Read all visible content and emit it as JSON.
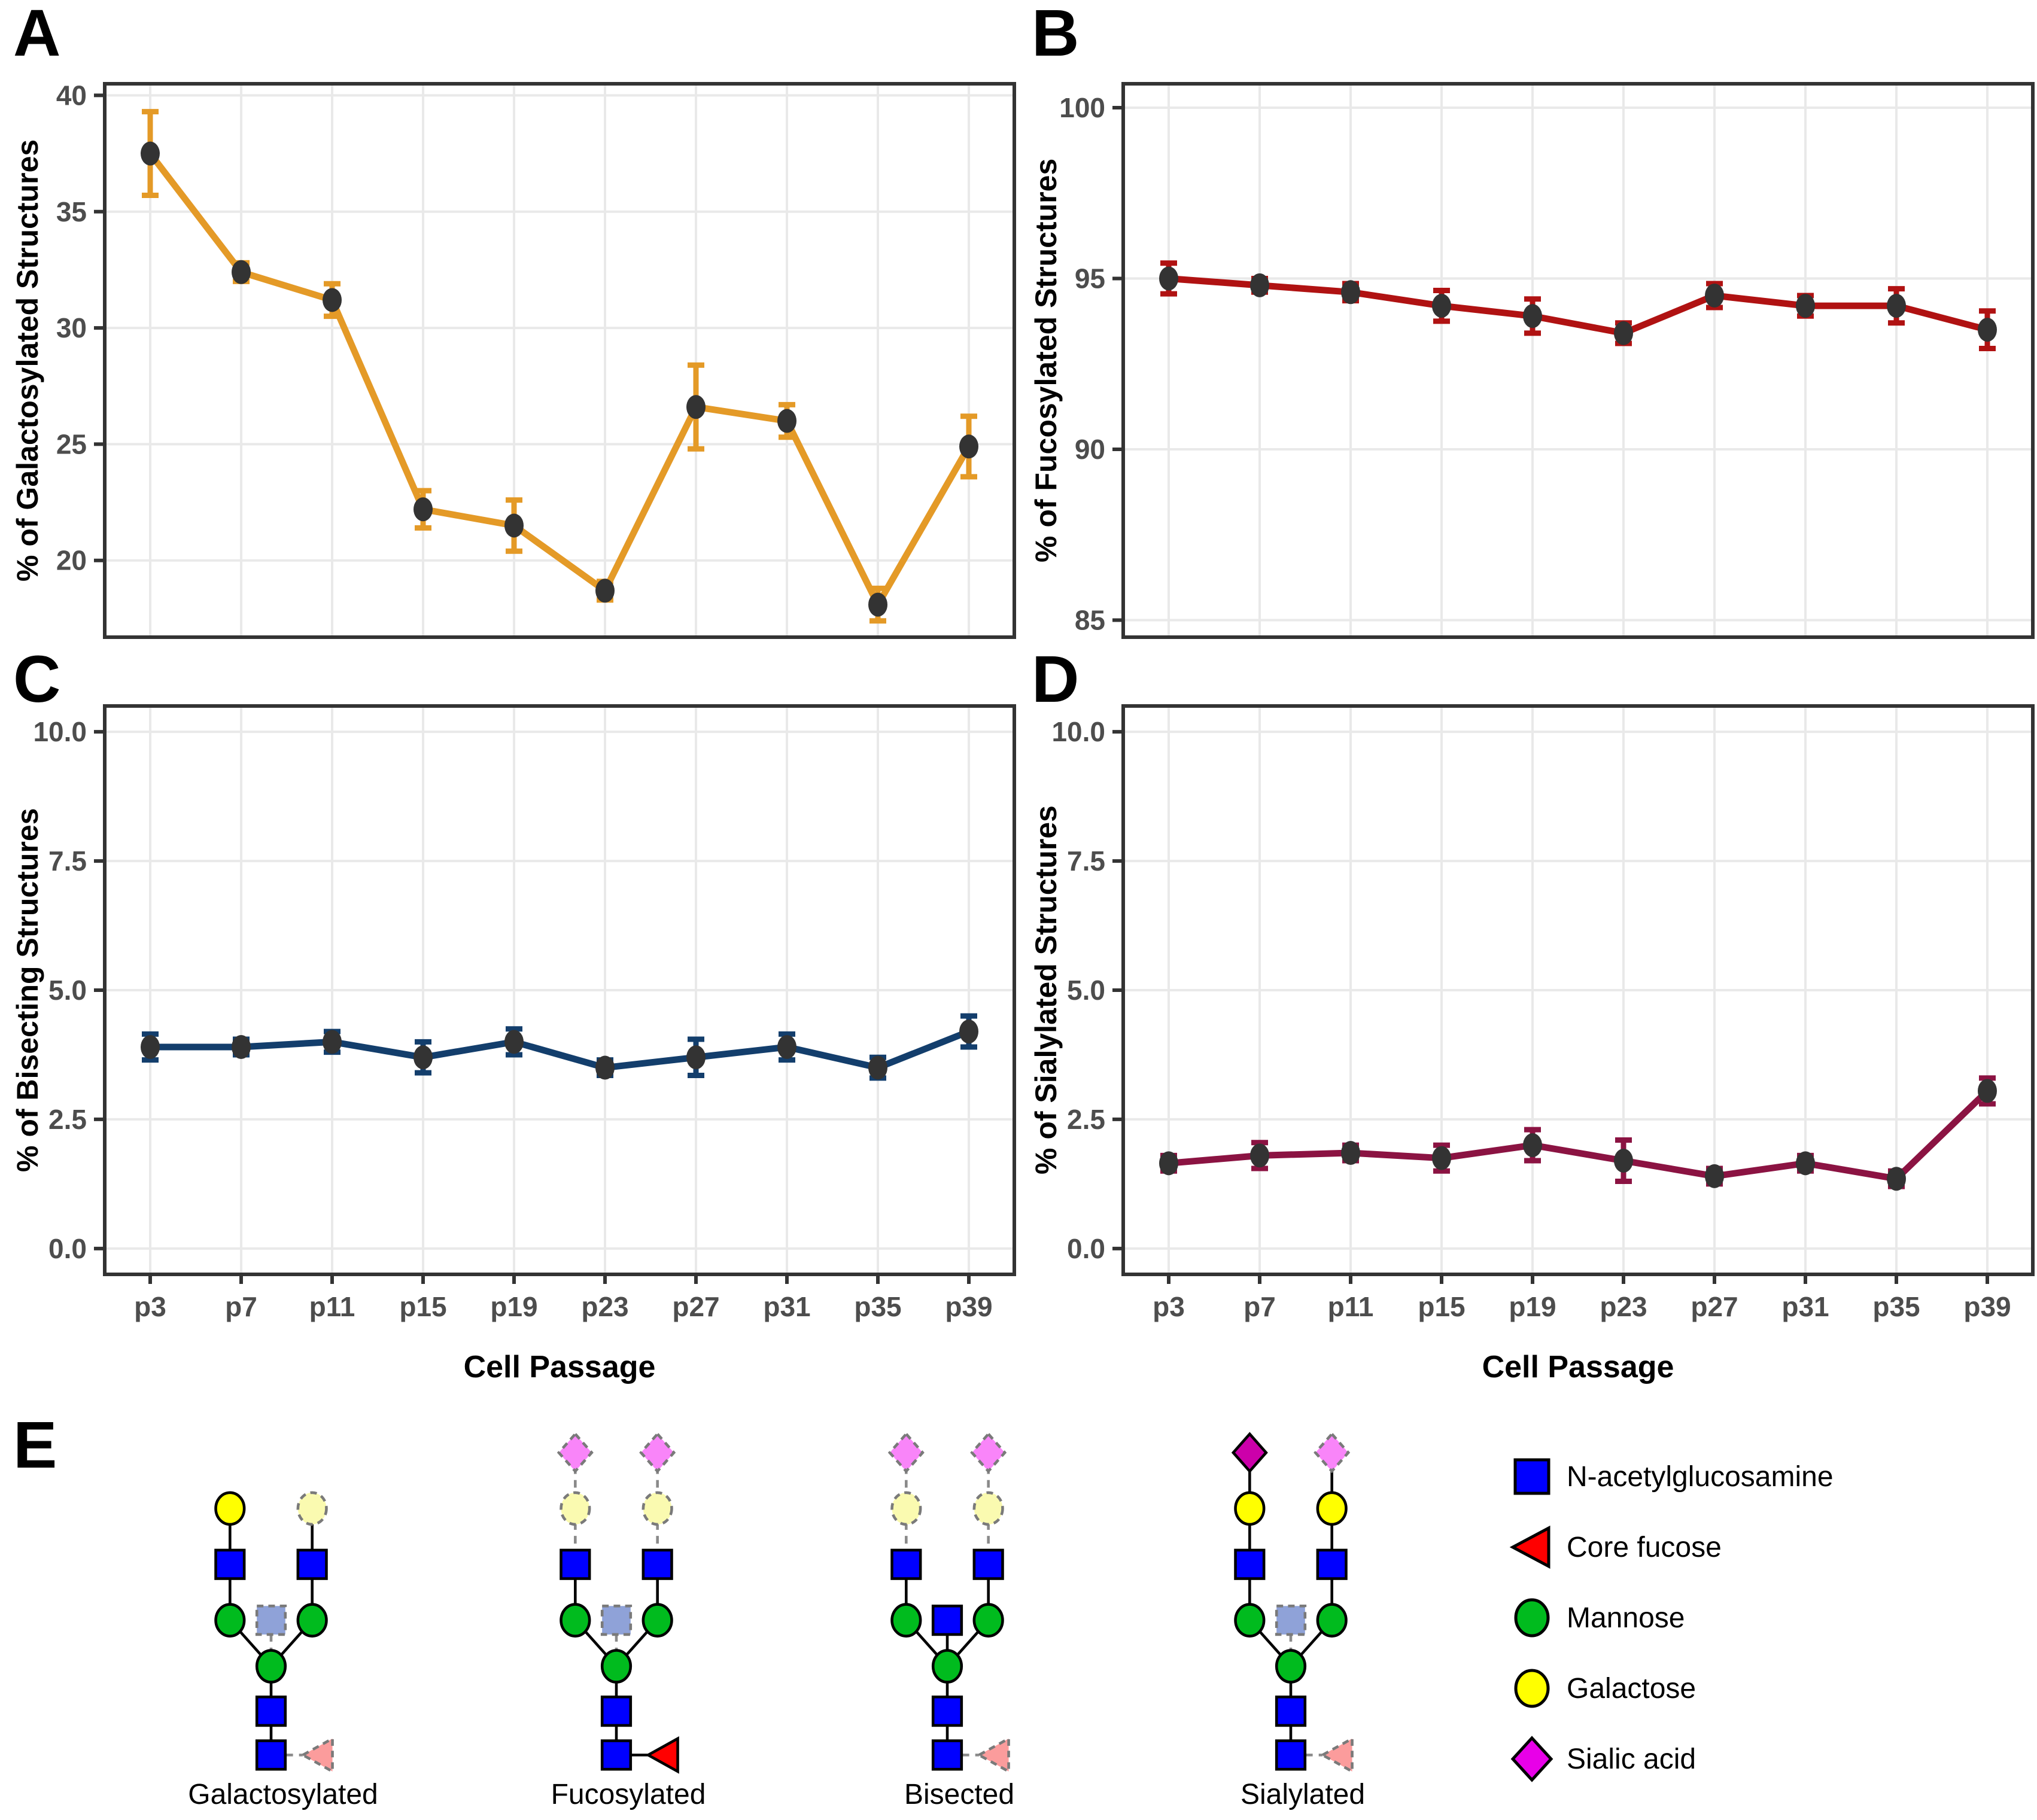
{
  "figure": {
    "panel_letters": [
      "A",
      "B",
      "C",
      "D",
      "E"
    ],
    "x_axis_title": "Cell Passage"
  },
  "chart_data": [
    {
      "panel": "A",
      "type": "line",
      "title": "",
      "ylabel": "% of Galactosylated Structures",
      "xlabel": "Cell Passage",
      "categories": [
        "p3",
        "p7",
        "p11",
        "p15",
        "p19",
        "p23",
        "p27",
        "p31",
        "p35",
        "p39"
      ],
      "series": [
        {
          "name": "Galactosylated",
          "values": [
            37.5,
            32.4,
            31.2,
            22.2,
            21.5,
            18.7,
            26.6,
            26.0,
            18.1,
            24.9
          ],
          "errors": [
            1.8,
            0.4,
            0.7,
            0.8,
            1.1,
            0.4,
            1.8,
            0.7,
            0.7,
            1.3
          ]
        }
      ],
      "ylim": [
        16.7,
        40.5
      ],
      "yticks": [
        20,
        25,
        30,
        35,
        40
      ],
      "ytick_labels": [
        "20",
        "25",
        "30",
        "35",
        "40"
      ],
      "line_color": "#E49A27",
      "point_color": "#333333",
      "grid": true,
      "legend_position": "none"
    },
    {
      "panel": "B",
      "type": "line",
      "title": "",
      "ylabel": "% of Fucosylated Structures",
      "xlabel": "Cell Passage",
      "categories": [
        "p3",
        "p7",
        "p11",
        "p15",
        "p19",
        "p23",
        "p27",
        "p31",
        "p35",
        "p39"
      ],
      "series": [
        {
          "name": "Fucosylated",
          "values": [
            95.0,
            94.8,
            94.6,
            94.2,
            93.9,
            93.4,
            94.5,
            94.2,
            94.2,
            93.5
          ],
          "errors": [
            0.45,
            0.2,
            0.25,
            0.45,
            0.5,
            0.3,
            0.35,
            0.3,
            0.5,
            0.55
          ]
        }
      ],
      "ylim": [
        84.5,
        100.7
      ],
      "yticks": [
        85,
        90,
        95,
        100
      ],
      "ytick_labels": [
        "85",
        "90",
        "95",
        "100"
      ],
      "line_color": "#B01212",
      "point_color": "#333333",
      "grid": true,
      "legend_position": "none"
    },
    {
      "panel": "C",
      "type": "line",
      "title": "",
      "ylabel": "% of Bisecting Structures",
      "xlabel": "Cell Passage",
      "categories": [
        "p3",
        "p7",
        "p11",
        "p15",
        "p19",
        "p23",
        "p27",
        "p31",
        "p35",
        "p39"
      ],
      "series": [
        {
          "name": "Bisecting",
          "values": [
            3.9,
            3.9,
            4.0,
            3.7,
            4.0,
            3.5,
            3.7,
            3.9,
            3.5,
            4.2
          ],
          "errors": [
            0.25,
            0.15,
            0.2,
            0.3,
            0.25,
            0.15,
            0.35,
            0.25,
            0.2,
            0.3
          ]
        }
      ],
      "ylim": [
        -0.5,
        10.5
      ],
      "yticks": [
        0,
        2.5,
        5,
        7.5,
        10
      ],
      "ytick_labels": [
        "0.0",
        "2.5",
        "5.0",
        "7.5",
        "10.0"
      ],
      "line_color": "#133E6C",
      "point_color": "#333333",
      "grid": true,
      "legend_position": "none"
    },
    {
      "panel": "D",
      "type": "line",
      "title": "",
      "ylabel": "% of Sialylated Structures",
      "xlabel": "Cell Passage",
      "categories": [
        "p3",
        "p7",
        "p11",
        "p15",
        "p19",
        "p23",
        "p27",
        "p31",
        "p35",
        "p39"
      ],
      "series": [
        {
          "name": "Sialylated",
          "values": [
            1.65,
            1.8,
            1.85,
            1.75,
            2.0,
            1.7,
            1.4,
            1.65,
            1.35,
            3.05
          ],
          "errors": [
            0.15,
            0.25,
            0.15,
            0.25,
            0.3,
            0.4,
            0.15,
            0.15,
            0.15,
            0.25
          ]
        }
      ],
      "ylim": [
        -0.5,
        10.5
      ],
      "yticks": [
        0,
        2.5,
        5,
        7.5,
        10
      ],
      "ytick_labels": [
        "0.0",
        "2.5",
        "5.0",
        "7.5",
        "10.0"
      ],
      "line_color": "#8B1342",
      "point_color": "#333333",
      "grid": true,
      "legend_position": "none"
    }
  ],
  "glycan_panel": {
    "structures": [
      {
        "name": "Galactosylated",
        "nodes": [
          {
            "id": "gL",
            "shape": "circle",
            "fill": "#FFFF00",
            "dashed": false
          },
          {
            "id": "gR",
            "shape": "circle",
            "fill": "#FAFAB0",
            "dashed": true
          },
          {
            "id": "sL",
            "shape": "square",
            "fill": "#0000FF",
            "dashed": false
          },
          {
            "id": "sR",
            "shape": "square",
            "fill": "#0000FF",
            "dashed": false
          },
          {
            "id": "mL",
            "shape": "circle",
            "fill": "#00BB1E",
            "dashed": false
          },
          {
            "id": "mR",
            "shape": "circle",
            "fill": "#00BB1E",
            "dashed": false
          },
          {
            "id": "bis",
            "shape": "square",
            "fill": "#8FA2D8",
            "dashed": true
          },
          {
            "id": "mC",
            "shape": "circle",
            "fill": "#00BB1E",
            "dashed": false
          },
          {
            "id": "s5",
            "shape": "square",
            "fill": "#0000FF",
            "dashed": false
          },
          {
            "id": "s6",
            "shape": "square",
            "fill": "#0000FF",
            "dashed": false
          },
          {
            "id": "fuc",
            "shape": "triangle",
            "fill": "#FB9C9C",
            "dashed": true
          }
        ],
        "edges": [
          [
            "gL",
            "sL",
            "solid"
          ],
          [
            "gR",
            "sR",
            "solid"
          ],
          [
            "sL",
            "mL",
            "solid"
          ],
          [
            "sR",
            "mR",
            "solid"
          ],
          [
            "mL",
            "mC",
            "solid"
          ],
          [
            "mR",
            "mC",
            "solid"
          ],
          [
            "bis",
            "mC",
            "dashed"
          ],
          [
            "mC",
            "s5",
            "solid"
          ],
          [
            "s5",
            "s6",
            "solid"
          ],
          [
            "s6",
            "fuc",
            "dashed"
          ]
        ]
      },
      {
        "name": "Fucosylated",
        "nodes": [
          {
            "id": "dL",
            "shape": "diamond",
            "fill": "#F985F9",
            "dashed": true
          },
          {
            "id": "dR",
            "shape": "diamond",
            "fill": "#F985F9",
            "dashed": true
          },
          {
            "id": "gL",
            "shape": "circle",
            "fill": "#FAFAB0",
            "dashed": true
          },
          {
            "id": "gR",
            "shape": "circle",
            "fill": "#FAFAB0",
            "dashed": true
          },
          {
            "id": "sL",
            "shape": "square",
            "fill": "#0000FF",
            "dashed": false
          },
          {
            "id": "sR",
            "shape": "square",
            "fill": "#0000FF",
            "dashed": false
          },
          {
            "id": "mL",
            "shape": "circle",
            "fill": "#00BB1E",
            "dashed": false
          },
          {
            "id": "mR",
            "shape": "circle",
            "fill": "#00BB1E",
            "dashed": false
          },
          {
            "id": "bis",
            "shape": "square",
            "fill": "#8FA2D8",
            "dashed": true
          },
          {
            "id": "mC",
            "shape": "circle",
            "fill": "#00BB1E",
            "dashed": false
          },
          {
            "id": "s5",
            "shape": "square",
            "fill": "#0000FF",
            "dashed": false
          },
          {
            "id": "s6",
            "shape": "square",
            "fill": "#0000FF",
            "dashed": false
          },
          {
            "id": "fuc",
            "shape": "triangle",
            "fill": "#FF0000",
            "dashed": false
          }
        ],
        "edges": [
          [
            "dL",
            "gL",
            "dashed"
          ],
          [
            "dR",
            "gR",
            "dashed"
          ],
          [
            "gL",
            "sL",
            "dashed"
          ],
          [
            "gR",
            "sR",
            "dashed"
          ],
          [
            "sL",
            "mL",
            "solid"
          ],
          [
            "sR",
            "mR",
            "solid"
          ],
          [
            "mL",
            "mC",
            "solid"
          ],
          [
            "mR",
            "mC",
            "solid"
          ],
          [
            "bis",
            "mC",
            "dashed"
          ],
          [
            "mC",
            "s5",
            "solid"
          ],
          [
            "s5",
            "s6",
            "solid"
          ],
          [
            "s6",
            "fuc",
            "solid"
          ]
        ]
      },
      {
        "name": "Bisected",
        "nodes": [
          {
            "id": "dL",
            "shape": "diamond",
            "fill": "#F985F9",
            "dashed": true
          },
          {
            "id": "dR",
            "shape": "diamond",
            "fill": "#F985F9",
            "dashed": true
          },
          {
            "id": "gL",
            "shape": "circle",
            "fill": "#FAFAB0",
            "dashed": true
          },
          {
            "id": "gR",
            "shape": "circle",
            "fill": "#FAFAB0",
            "dashed": true
          },
          {
            "id": "sL",
            "shape": "square",
            "fill": "#0000FF",
            "dashed": false
          },
          {
            "id": "sR",
            "shape": "square",
            "fill": "#0000FF",
            "dashed": false
          },
          {
            "id": "mL",
            "shape": "circle",
            "fill": "#00BB1E",
            "dashed": false
          },
          {
            "id": "mR",
            "shape": "circle",
            "fill": "#00BB1E",
            "dashed": false
          },
          {
            "id": "bis",
            "shape": "square",
            "fill": "#0000FF",
            "dashed": false
          },
          {
            "id": "mC",
            "shape": "circle",
            "fill": "#00BB1E",
            "dashed": false
          },
          {
            "id": "s5",
            "shape": "square",
            "fill": "#0000FF",
            "dashed": false
          },
          {
            "id": "s6",
            "shape": "square",
            "fill": "#0000FF",
            "dashed": false
          },
          {
            "id": "fuc",
            "shape": "triangle",
            "fill": "#FB9C9C",
            "dashed": true
          }
        ],
        "edges": [
          [
            "dL",
            "gL",
            "dashed"
          ],
          [
            "dR",
            "gR",
            "dashed"
          ],
          [
            "gL",
            "sL",
            "dashed"
          ],
          [
            "gR",
            "sR",
            "dashed"
          ],
          [
            "sL",
            "mL",
            "solid"
          ],
          [
            "sR",
            "mR",
            "solid"
          ],
          [
            "mL",
            "mC",
            "solid"
          ],
          [
            "mR",
            "mC",
            "solid"
          ],
          [
            "bis",
            "mC",
            "solid"
          ],
          [
            "mC",
            "s5",
            "solid"
          ],
          [
            "s5",
            "s6",
            "solid"
          ],
          [
            "s6",
            "fuc",
            "dashed"
          ]
        ]
      },
      {
        "name": "Sialylated",
        "nodes": [
          {
            "id": "dL",
            "shape": "diamond",
            "fill": "#CC00AA",
            "dashed": false
          },
          {
            "id": "dR",
            "shape": "diamond",
            "fill": "#F985F9",
            "dashed": true
          },
          {
            "id": "gL",
            "shape": "circle",
            "fill": "#FFFF00",
            "dashed": false
          },
          {
            "id": "gR",
            "shape": "circle",
            "fill": "#FFFF00",
            "dashed": false
          },
          {
            "id": "sL",
            "shape": "square",
            "fill": "#0000FF",
            "dashed": false
          },
          {
            "id": "sR",
            "shape": "square",
            "fill": "#0000FF",
            "dashed": false
          },
          {
            "id": "mL",
            "shape": "circle",
            "fill": "#00BB1E",
            "dashed": false
          },
          {
            "id": "mR",
            "shape": "circle",
            "fill": "#00BB1E",
            "dashed": false
          },
          {
            "id": "bis",
            "shape": "square",
            "fill": "#8FA2D8",
            "dashed": true
          },
          {
            "id": "mC",
            "shape": "circle",
            "fill": "#00BB1E",
            "dashed": false
          },
          {
            "id": "s5",
            "shape": "square",
            "fill": "#0000FF",
            "dashed": false
          },
          {
            "id": "s6",
            "shape": "square",
            "fill": "#0000FF",
            "dashed": false
          },
          {
            "id": "fuc",
            "shape": "triangle",
            "fill": "#FB9C9C",
            "dashed": true
          }
        ],
        "edges": [
          [
            "dL",
            "gL",
            "solid"
          ],
          [
            "dR",
            "gR",
            "solid"
          ],
          [
            "gL",
            "sL",
            "solid"
          ],
          [
            "gR",
            "sR",
            "solid"
          ],
          [
            "sL",
            "mL",
            "solid"
          ],
          [
            "sR",
            "mR",
            "solid"
          ],
          [
            "mL",
            "mC",
            "solid"
          ],
          [
            "mR",
            "mC",
            "solid"
          ],
          [
            "bis",
            "mC",
            "dashed"
          ],
          [
            "mC",
            "s5",
            "solid"
          ],
          [
            "s5",
            "s6",
            "solid"
          ],
          [
            "s6",
            "fuc",
            "dashed"
          ]
        ]
      }
    ],
    "legend": [
      {
        "shape": "square",
        "color": "#0000FF",
        "label": "N-acetylglucosamine"
      },
      {
        "shape": "triangle-left",
        "color": "#FF0000",
        "label": "Core fucose"
      },
      {
        "shape": "circle",
        "color": "#00BB1E",
        "label": "Mannose"
      },
      {
        "shape": "circle",
        "color": "#FFFF00",
        "label": "Galactose"
      },
      {
        "shape": "diamond",
        "color": "#E800E8",
        "label": "Sialic acid"
      }
    ]
  }
}
